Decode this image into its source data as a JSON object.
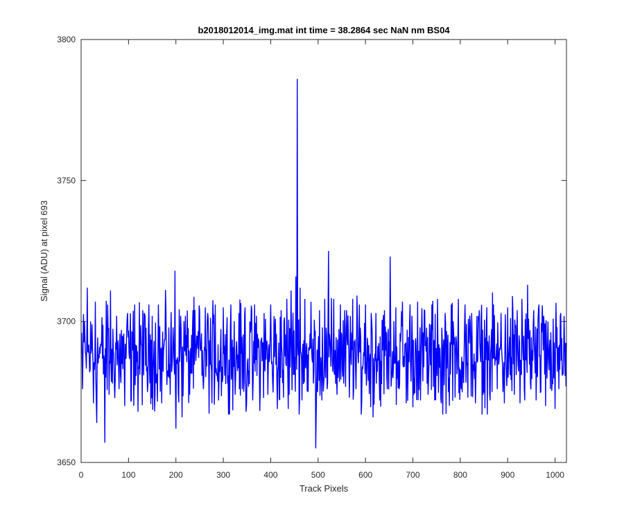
{
  "chart_data": {
    "type": "line",
    "title": "b2018012014_img.mat int time = 38.2864 sec  NaN nm BS04",
    "xlabel": "Track Pixels",
    "ylabel": "Signal (ADU) at pixel 693",
    "xlim": [
      0,
      1024
    ],
    "ylim": [
      3650,
      3800
    ],
    "xticks": [
      0,
      100,
      200,
      300,
      400,
      500,
      600,
      700,
      800,
      900,
      1000
    ],
    "yticks": [
      3650,
      3700,
      3750,
      3800
    ],
    "grid": false,
    "legend": "none",
    "series": [
      {
        "color": "#0000ff",
        "noise": {
          "n_points": 1024,
          "mean": 3688,
          "range": [
            3667,
            3712
          ]
        },
        "points": [
          [
            1,
            3696
          ],
          [
            2,
            3688
          ],
          [
            3,
            3676
          ],
          [
            7,
            3700
          ],
          [
            10,
            3688
          ],
          [
            13,
            3712
          ],
          [
            17,
            3688
          ],
          [
            23,
            3699
          ],
          [
            26,
            3671
          ],
          [
            30,
            3707
          ],
          [
            33,
            3664
          ],
          [
            41,
            3692
          ],
          [
            50,
            3657
          ],
          [
            56,
            3706
          ],
          [
            59,
            3674
          ],
          [
            62,
            3711
          ],
          [
            66,
            3678
          ],
          [
            75,
            3702
          ],
          [
            80,
            3676
          ],
          [
            85,
            3697
          ],
          [
            92,
            3670
          ],
          [
            98,
            3703
          ],
          [
            106,
            3672
          ],
          [
            113,
            3706
          ],
          [
            120,
            3668
          ],
          [
            130,
            3704
          ],
          [
            140,
            3675
          ],
          [
            150,
            3702
          ],
          [
            156,
            3674
          ],
          [
            163,
            3706
          ],
          [
            170,
            3671
          ],
          [
            179,
            3704
          ],
          [
            188,
            3674
          ],
          [
            195,
            3693
          ],
          [
            198,
            3718
          ],
          [
            200,
            3662
          ],
          [
            204,
            3686
          ],
          [
            210,
            3702
          ],
          [
            213,
            3666
          ],
          [
            220,
            3702
          ],
          [
            229,
            3674
          ],
          [
            236,
            3704
          ],
          [
            242,
            3686
          ],
          [
            250,
            3704
          ],
          [
            258,
            3676
          ],
          [
            267,
            3703
          ],
          [
            276,
            3671
          ],
          [
            283,
            3706
          ],
          [
            290,
            3672
          ],
          [
            300,
            3705
          ],
          [
            309,
            3678
          ],
          [
            316,
            3706
          ],
          [
            325,
            3674
          ],
          [
            333,
            3703
          ],
          [
            340,
            3676
          ],
          [
            346,
            3705
          ],
          [
            348,
            3668
          ],
          [
            356,
            3700
          ],
          [
            362,
            3672
          ],
          [
            370,
            3702
          ],
          [
            378,
            3676
          ],
          [
            386,
            3703
          ],
          [
            394,
            3674
          ],
          [
            400,
            3706
          ],
          [
            404,
            3679
          ],
          [
            410,
            3701
          ],
          [
            414,
            3669
          ],
          [
            422,
            3704
          ],
          [
            427,
            3673
          ],
          [
            434,
            3708
          ],
          [
            437,
            3669
          ],
          [
            443,
            3711
          ],
          [
            448,
            3681
          ],
          [
            453,
            3716
          ],
          [
            456,
            3786
          ],
          [
            458,
            3688
          ],
          [
            462,
            3712
          ],
          [
            466,
            3672
          ],
          [
            472,
            3708
          ],
          [
            479,
            3675
          ],
          [
            485,
            3707
          ],
          [
            490,
            3678
          ],
          [
            493,
            3695
          ],
          [
            495,
            3655
          ],
          [
            498,
            3690
          ],
          [
            503,
            3704
          ],
          [
            508,
            3672
          ],
          [
            514,
            3708
          ],
          [
            519,
            3676
          ],
          [
            522,
            3725
          ],
          [
            527,
            3684
          ],
          [
            533,
            3708
          ],
          [
            540,
            3674
          ],
          [
            547,
            3706
          ],
          [
            554,
            3678
          ],
          [
            560,
            3704
          ],
          [
            566,
            3673
          ],
          [
            573,
            3708
          ],
          [
            580,
            3676
          ],
          [
            587,
            3706
          ],
          [
            592,
            3671
          ],
          [
            600,
            3706
          ],
          [
            606,
            3679
          ],
          [
            612,
            3703
          ],
          [
            616,
            3666
          ],
          [
            622,
            3703
          ],
          [
            630,
            3672
          ],
          [
            640,
            3704
          ],
          [
            646,
            3676
          ],
          [
            652,
            3723
          ],
          [
            658,
            3680
          ],
          [
            664,
            3705
          ],
          [
            671,
            3676
          ],
          [
            678,
            3707
          ],
          [
            686,
            3671
          ],
          [
            694,
            3706
          ],
          [
            702,
            3674
          ],
          [
            710,
            3707
          ],
          [
            716,
            3672
          ],
          [
            724,
            3704
          ],
          [
            732,
            3674
          ],
          [
            740,
            3706
          ],
          [
            746,
            3672
          ],
          [
            752,
            3708
          ],
          [
            760,
            3671
          ],
          [
            763,
            3667
          ],
          [
            768,
            3703
          ],
          [
            775,
            3675
          ],
          [
            781,
            3706
          ],
          [
            789,
            3673
          ],
          [
            796,
            3708
          ],
          [
            802,
            3676
          ],
          [
            810,
            3706
          ],
          [
            816,
            3673
          ],
          [
            824,
            3703
          ],
          [
            832,
            3671
          ],
          [
            840,
            3704
          ],
          [
            848,
            3674
          ],
          [
            856,
            3705
          ],
          [
            863,
            3672
          ],
          [
            870,
            3706
          ],
          [
            878,
            3676
          ],
          [
            886,
            3703
          ],
          [
            893,
            3671
          ],
          [
            900,
            3705
          ],
          [
            905,
            3681
          ],
          [
            910,
            3709
          ],
          [
            914,
            3674
          ],
          [
            920,
            3704
          ],
          [
            926,
            3671
          ],
          [
            930,
            3708
          ],
          [
            935,
            3676
          ],
          [
            942,
            3713
          ],
          [
            948,
            3678
          ],
          [
            955,
            3704
          ],
          [
            960,
            3672
          ],
          [
            966,
            3706
          ],
          [
            970,
            3675
          ],
          [
            976,
            3702
          ],
          [
            980,
            3670
          ],
          [
            985,
            3700
          ],
          [
            990,
            3676
          ],
          [
            996,
            3701
          ],
          [
            1000,
            3669
          ],
          [
            1004,
            3698
          ],
          [
            1008,
            3676
          ],
          [
            1012,
            3703
          ],
          [
            1016,
            3682
          ],
          [
            1020,
            3692
          ],
          [
            1023,
            3677
          ]
        ]
      }
    ]
  }
}
